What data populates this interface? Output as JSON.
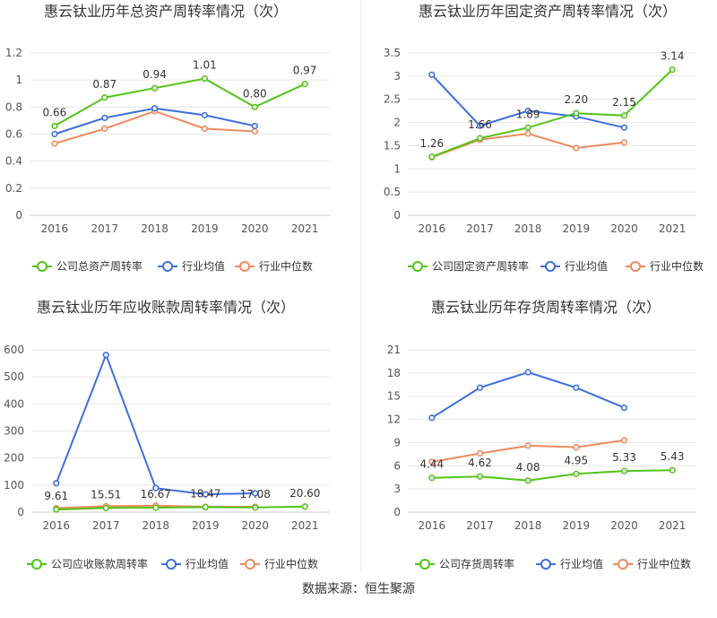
{
  "colors": {
    "company": "#52c41a",
    "avg": "#3d6fdb",
    "median": "#f08a5d",
    "grid": "#e6e6e6",
    "axis_text": "#555555",
    "title": "#333333"
  },
  "legend": {
    "avg_label": "行业均值",
    "median_label": "行业中位数"
  },
  "footer": {
    "source": "数据来源：恒生聚源"
  },
  "chart_data": [
    {
      "type": "line",
      "title": "惠云钛业历年总资产周转率情况（次）",
      "categories": [
        "2016",
        "2017",
        "2018",
        "2019",
        "2020",
        "2021"
      ],
      "ylim": [
        0,
        1.2
      ],
      "yticks": [
        "0",
        "0.2",
        "0.4",
        "0.6",
        "0.8",
        "1",
        "1.2"
      ],
      "series": [
        {
          "name": "公司总资产周转率",
          "role": "company",
          "values": [
            0.66,
            0.87,
            0.94,
            1.01,
            0.8,
            0.97
          ],
          "labels": [
            "0.66",
            "0.87",
            "0.94",
            "1.01",
            "0.80",
            "0.97"
          ]
        },
        {
          "name": "行业均值",
          "role": "avg",
          "values": [
            0.6,
            0.72,
            0.79,
            0.74,
            0.66,
            null
          ]
        },
        {
          "name": "行业中位数",
          "role": "median",
          "values": [
            0.53,
            0.64,
            0.77,
            0.64,
            0.62,
            null
          ]
        }
      ]
    },
    {
      "type": "line",
      "title": "惠云钛业历年固定资产周转率情况（次）",
      "categories": [
        "2016",
        "2017",
        "2018",
        "2019",
        "2020",
        "2021"
      ],
      "ylim": [
        0,
        3.5
      ],
      "yticks": [
        "0",
        "0.5",
        "1",
        "1.5",
        "2",
        "2.5",
        "3",
        "3.5"
      ],
      "series": [
        {
          "name": "公司固定资产周转率",
          "role": "company",
          "values": [
            1.26,
            1.66,
            1.89,
            2.2,
            2.15,
            3.14
          ],
          "labels": [
            "1.26",
            "1.66",
            "1.89",
            "2.20",
            "2.15",
            "3.14"
          ]
        },
        {
          "name": "行业均值",
          "role": "avg",
          "values": [
            3.03,
            1.93,
            2.25,
            2.13,
            1.89,
            null
          ]
        },
        {
          "name": "行业中位数",
          "role": "median",
          "values": [
            1.25,
            1.63,
            1.76,
            1.45,
            1.57,
            null
          ]
        }
      ]
    },
    {
      "type": "line",
      "title": "惠云钛业历年应收账款周转率情况（次）",
      "categories": [
        "2016",
        "2017",
        "2018",
        "2019",
        "2020",
        "2021"
      ],
      "ylim": [
        0,
        600
      ],
      "yticks": [
        "0",
        "100",
        "200",
        "300",
        "400",
        "500",
        "600"
      ],
      "series": [
        {
          "name": "公司应收账款周转率",
          "role": "company",
          "values": [
            9.61,
            15.51,
            16.67,
            18.47,
            17.08,
            20.6
          ],
          "labels": [
            "9.61",
            "15.51",
            "16.67",
            "18.47",
            "17.08",
            "20.60"
          ]
        },
        {
          "name": "行业均值",
          "role": "avg",
          "values": [
            107,
            581,
            89,
            66,
            70,
            null
          ]
        },
        {
          "name": "行业中位数",
          "role": "median",
          "values": [
            15,
            22,
            24,
            20,
            20,
            null
          ]
        }
      ]
    },
    {
      "type": "line",
      "title": "惠云钛业历年存货周转率情况（次）",
      "categories": [
        "2016",
        "2017",
        "2018",
        "2019",
        "2020",
        "2021"
      ],
      "ylim": [
        0,
        21
      ],
      "yticks": [
        "0",
        "3",
        "6",
        "9",
        "12",
        "15",
        "18",
        "21"
      ],
      "series": [
        {
          "name": "公司存货周转率",
          "role": "company",
          "values": [
            4.44,
            4.62,
            4.08,
            4.95,
            5.33,
            5.43
          ],
          "labels": [
            "4.44",
            "4.62",
            "4.08",
            "4.95",
            "5.33",
            "5.43"
          ]
        },
        {
          "name": "行业均值",
          "role": "avg",
          "values": [
            12.2,
            16.1,
            18.1,
            16.1,
            13.5,
            null
          ]
        },
        {
          "name": "行业中位数",
          "role": "median",
          "values": [
            6.5,
            7.6,
            8.6,
            8.4,
            9.3,
            null
          ]
        }
      ]
    }
  ]
}
